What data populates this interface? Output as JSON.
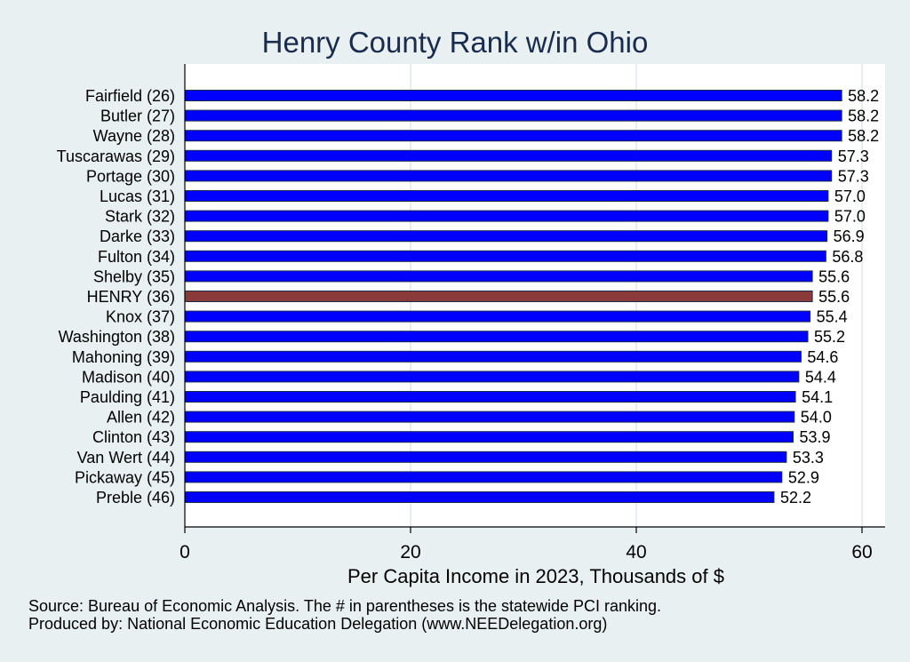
{
  "chart_data": {
    "type": "bar",
    "orientation": "horizontal",
    "title": "Henry County Rank w/in Ohio",
    "xlabel": "Per Capita Income in 2023, Thousands of $",
    "ylabel": "",
    "xlim": [
      0,
      60
    ],
    "xticks": [
      0,
      20,
      40,
      60
    ],
    "grid": true,
    "legend": "none",
    "categories": [
      "Fairfield (26)",
      "Butler (27)",
      "Wayne (28)",
      "Tuscarawas (29)",
      "Portage (30)",
      "Lucas (31)",
      "Stark (32)",
      "Darke (33)",
      "Fulton (34)",
      "Shelby (35)",
      "HENRY (36)",
      "Knox (37)",
      "Washington (38)",
      "Mahoning (39)",
      "Madison (40)",
      "Paulding (41)",
      "Allen (42)",
      "Clinton (43)",
      "Van Wert (44)",
      "Pickaway (45)",
      "Preble (46)"
    ],
    "values": [
      58.2,
      58.2,
      58.2,
      57.3,
      57.3,
      57.0,
      57.0,
      56.9,
      56.8,
      55.6,
      55.6,
      55.4,
      55.2,
      54.6,
      54.4,
      54.1,
      54.0,
      53.9,
      53.3,
      52.9,
      52.2
    ],
    "value_labels": [
      "58.2",
      "58.2",
      "58.2",
      "57.3",
      "57.3",
      "57.0",
      "57.0",
      "56.9",
      "56.8",
      "55.6",
      "55.6",
      "55.4",
      "55.2",
      "54.6",
      "54.4",
      "54.1",
      "54.0",
      "53.9",
      "53.3",
      "52.9",
      "52.2"
    ],
    "highlight": "HENRY (36)",
    "colors": {
      "bar": "#0000ff",
      "highlight": "#8b3a3a",
      "bar_edge": "#1a2c4e",
      "grid": "#dfe8ec",
      "background": "#e9f0f2",
      "plot_background": "#ffffff"
    }
  },
  "notes": {
    "source": "Source: Bureau of Economic Analysis. The # in parentheses is the statewide PCI ranking.",
    "produced_by": "Produced by: National Economic Education Delegation (www.NEEDelegation.org)"
  }
}
